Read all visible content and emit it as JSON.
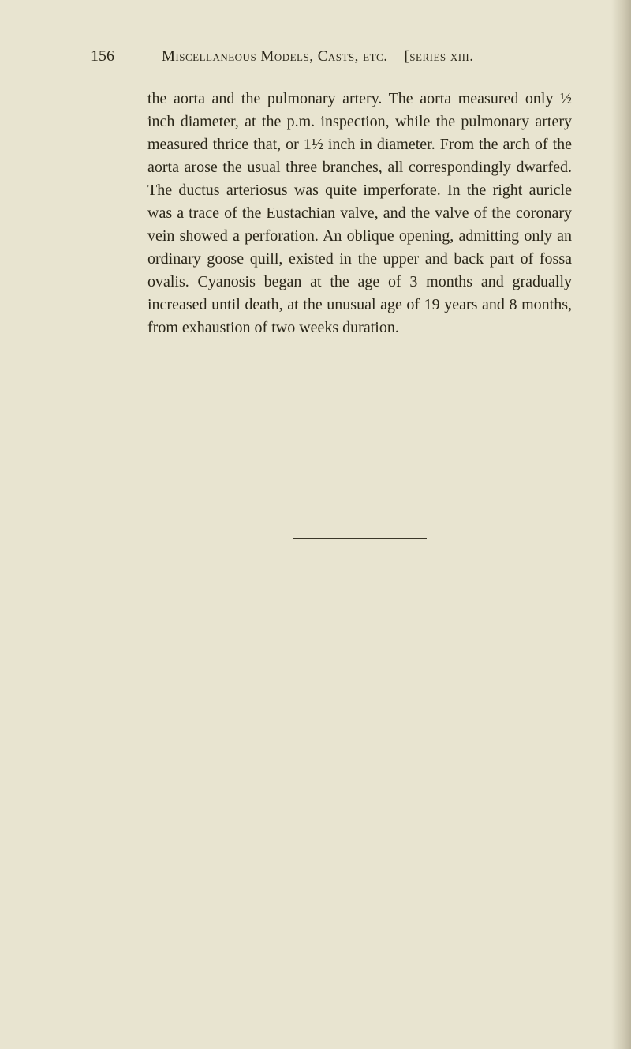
{
  "header": {
    "page_number": "156",
    "running_title_left": "Miscellaneous Models, Casts, etc.",
    "running_title_right": "[series xiii."
  },
  "body": {
    "paragraph": "the aorta and the pulmonary artery. The aorta measured only ½ inch diameter, at the p.m. inspection, while the pulmonary artery measured thrice that, or 1½ inch in diameter. From the arch of the aorta arose the usual three branches, all correspondingly dwarfed. The ductus arteriosus was quite imperforate. In the right auricle was a trace of the Eustachian valve, and the valve of the coronary vein showed a perforation. An oblique opening, admitting only an ordinary goose quill, existed in the upper and back part of fossa ovalis. Cyanosis began at the age of 3 months and gradually increased until death, at the unusual age of 19 years and 8 months, from exhaustion of two weeks duration."
  }
}
